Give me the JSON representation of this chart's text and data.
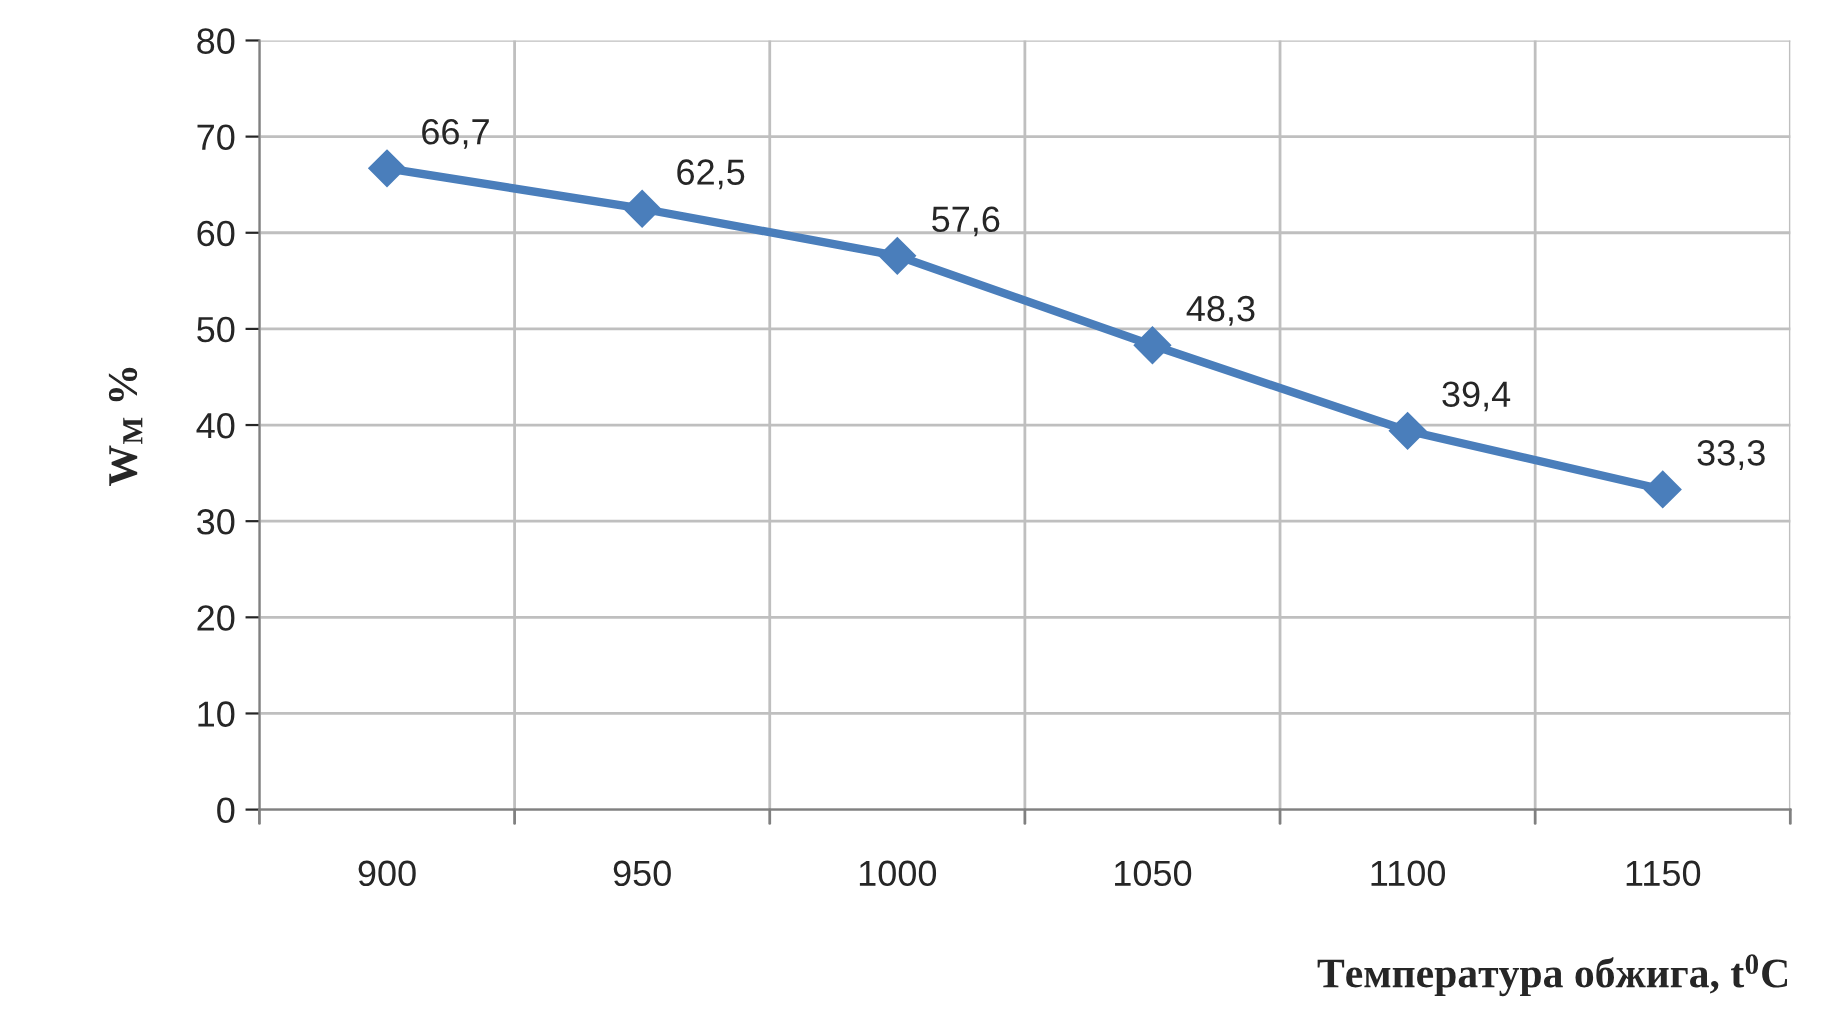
{
  "chart_data": {
    "type": "line",
    "categories": [
      "900",
      "950",
      "1000",
      "1050",
      "1100",
      "1150"
    ],
    "series": [
      {
        "color": "#4a7ebb",
        "values": [
          66.7,
          62.5,
          57.6,
          48.3,
          39.4,
          33.3
        ],
        "value_labels": [
          "66,7",
          "62,5",
          "57,6",
          "48,3",
          "39,4",
          "33,3"
        ]
      }
    ],
    "ylabel": "W$_{M}$ %",
    "xlabel": "Температура обжига, t$^{0}$C",
    "ylim": [
      0,
      80
    ],
    "yticks": [
      0,
      10,
      20,
      30,
      40,
      50,
      60,
      70,
      80
    ],
    "grid": true,
    "marker": "diamond",
    "line_style": "solid"
  }
}
